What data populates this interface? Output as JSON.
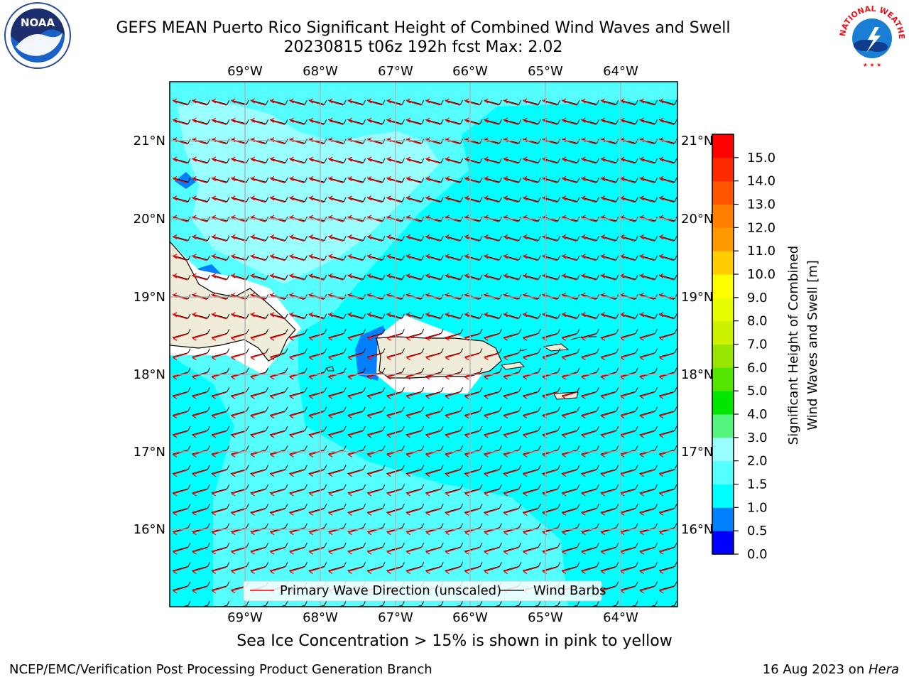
{
  "header": {
    "title_line1": "GEFS MEAN Puerto Rico Significant Height of Combined Wind Waves and Swell",
    "title_line2": "20230815 t06z 192h fcst   Max: 2.02"
  },
  "logos": {
    "left": "noaa-logo",
    "left_text": "NOAA",
    "right": "nws-logo",
    "right_arc_text": "NATIONAL WEATHER SERVICE"
  },
  "map": {
    "lon_labels": [
      "69°W",
      "68°W",
      "67°W",
      "66°W",
      "65°W",
      "64°W"
    ],
    "lat_labels": [
      "21°N",
      "20°N",
      "19°N",
      "18°N",
      "17°N",
      "16°N"
    ],
    "ocean_color": "#00ffff",
    "light_band_color": "#55ffff",
    "lighter_band_color": "#99ffff",
    "land_color": "#efedd9",
    "arrow_color": "#ff0000",
    "barb_color": "#000000"
  },
  "legend": {
    "primary_wave": "Primary Wave Direction (unscaled)",
    "wind_barbs": "Wind Barbs"
  },
  "colorbar": {
    "label_line1": "Significant Height of Combined",
    "label_line2": "Wind Waves and Swell [m]",
    "ticks": [
      "0.0",
      "0.5",
      "1.0",
      "1.5",
      "2.0",
      "3.0",
      "4.0",
      "5.0",
      "6.0",
      "7.0",
      "8.0",
      "9.0",
      "10.0",
      "11.0",
      "12.0",
      "13.0",
      "14.0",
      "15.0"
    ],
    "colors": [
      "#0000ff",
      "#0080ff",
      "#00ffff",
      "#55ffff",
      "#99ffff",
      "#55f580",
      "#00e600",
      "#55e600",
      "#99e600",
      "#ccf200",
      "#e6ff00",
      "#ffff00",
      "#ffcc00",
      "#ff9900",
      "#ff8000",
      "#ff5500",
      "#ff2a00",
      "#ff0000"
    ]
  },
  "footer": {
    "sea_ice_note": "Sea Ice Concentration > 15% is shown in pink to yellow",
    "producer": "NCEP/EMC/Verification Post Processing Product Generation Branch",
    "date": "16 Aug 2023 on ",
    "host": "Hera"
  }
}
